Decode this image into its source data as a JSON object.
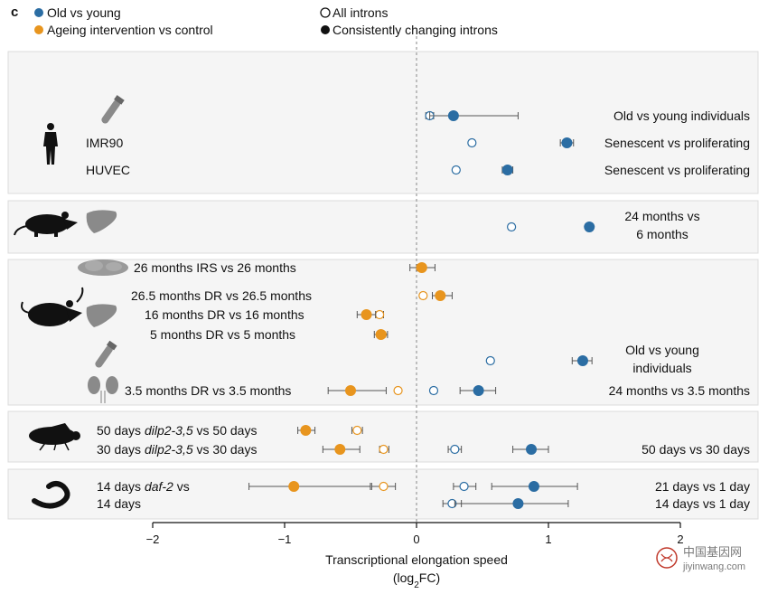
{
  "panel_letter": "c",
  "legend": {
    "old_vs_young": "Old vs young",
    "ageing_intervention": "Ageing intervention vs control",
    "all_introns": "All introns",
    "consistently_changing": "Consistently changing introns"
  },
  "colors": {
    "old_vs_young": "#2b6da3",
    "ageing_intervention": "#e8951e",
    "panel_bg": "#f5f5f5",
    "errorbar": "#555555"
  },
  "icons": [
    "human-silhouette-icon",
    "blood-tube-icon",
    "rat-silhouette-icon",
    "liver-icon",
    "brain-icon",
    "mouse-silhouette-icon",
    "kidney-icon",
    "fly-silhouette-icon",
    "worm-silhouette-icon"
  ],
  "groups": [
    {
      "organism": "human",
      "rows": [
        {
          "left_label": "",
          "right_label": "Old vs young individuals",
          "type": "old_vs_young",
          "all": {
            "value": 0.1,
            "lo": 0.07,
            "hi": 0.13
          },
          "consistent": {
            "value": 0.28,
            "lo": 0.1,
            "hi": 0.77
          }
        },
        {
          "left_label": "IMR90",
          "right_label": "Senescent vs proliferating",
          "type": "old_vs_young",
          "all": {
            "value": 0.42,
            "lo": 0.4,
            "hi": 0.44
          },
          "consistent": {
            "value": 1.14,
            "lo": 1.09,
            "hi": 1.19
          }
        },
        {
          "left_label": "HUVEC",
          "right_label": "Senescent vs proliferating",
          "type": "old_vs_young",
          "all": {
            "value": 0.3,
            "lo": 0.28,
            "hi": 0.32
          },
          "consistent": {
            "value": 0.69,
            "lo": 0.65,
            "hi": 0.73
          }
        }
      ]
    },
    {
      "organism": "rat",
      "rows": [
        {
          "left_label": "",
          "right_label": "24 months vs\n6 months",
          "type": "old_vs_young",
          "all": {
            "value": 0.72,
            "lo": 0.7,
            "hi": 0.74
          },
          "consistent": {
            "value": 1.31,
            "lo": 1.29,
            "hi": 1.33
          }
        }
      ]
    },
    {
      "organism": "mouse",
      "rows": [
        {
          "left_label": "26 months IRS vs 26 months",
          "right_label": "",
          "type": "ageing_intervention",
          "all": {
            "value": 0.03,
            "lo": 0.0,
            "hi": 0.06
          },
          "consistent": {
            "value": 0.04,
            "lo": -0.05,
            "hi": 0.14
          }
        },
        {
          "left_label": "26.5 months DR vs 26.5 months",
          "right_label": "",
          "type": "ageing_intervention",
          "all": {
            "value": 0.05,
            "lo": 0.03,
            "hi": 0.07
          },
          "consistent": {
            "value": 0.18,
            "lo": 0.12,
            "hi": 0.27
          }
        },
        {
          "left_label": "16 months DR vs 16 months",
          "right_label": "",
          "type": "ageing_intervention",
          "all": {
            "value": -0.28,
            "lo": -0.31,
            "hi": -0.25
          },
          "consistent": {
            "value": -0.38,
            "lo": -0.45,
            "hi": -0.31
          }
        },
        {
          "left_label": "5 months DR vs 5 months",
          "right_label": "",
          "type": "ageing_intervention",
          "all": {
            "value": -0.26,
            "lo": -0.28,
            "hi": -0.24
          },
          "consistent": {
            "value": -0.27,
            "lo": -0.32,
            "hi": -0.22
          }
        },
        {
          "left_label": "",
          "right_label": "Old vs young\nindividuals",
          "type": "old_vs_young",
          "all": {
            "value": 0.56,
            "lo": 0.54,
            "hi": 0.58
          },
          "consistent": {
            "value": 1.26,
            "lo": 1.18,
            "hi": 1.33
          }
        },
        {
          "left_label": "3.5 months DR vs 3.5 months",
          "right_label": "24 months vs 3.5 months",
          "type": "mixed",
          "intervention_all": {
            "value": -0.14,
            "lo": -0.16,
            "hi": -0.12
          },
          "intervention_consistent": {
            "value": -0.5,
            "lo": -0.67,
            "hi": -0.23
          },
          "old_all": {
            "value": 0.13,
            "lo": 0.11,
            "hi": 0.15
          },
          "old_consistent": {
            "value": 0.47,
            "lo": 0.33,
            "hi": 0.6
          }
        }
      ]
    },
    {
      "organism": "fly",
      "rows": [
        {
          "left_label": "50 days |dilp2-3,5| vs 50 days",
          "right_label": "",
          "type": "ageing_intervention",
          "all": {
            "value": -0.45,
            "lo": -0.49,
            "hi": -0.41
          },
          "consistent": {
            "value": -0.84,
            "lo": -0.9,
            "hi": -0.77
          }
        },
        {
          "left_label": "30 days |dilp2-3,5| vs 30 days",
          "right_label": "50 days vs 30 days",
          "type": "mixed",
          "intervention_all": {
            "value": -0.25,
            "lo": -0.28,
            "hi": -0.21
          },
          "intervention_consistent": {
            "value": -0.58,
            "lo": -0.71,
            "hi": -0.43
          },
          "old_all": {
            "value": 0.29,
            "lo": 0.24,
            "hi": 0.34
          },
          "old_consistent": {
            "value": 0.87,
            "lo": 0.73,
            "hi": 1.0
          }
        }
      ]
    },
    {
      "organism": "worm",
      "rows": [
        {
          "left_label": "14 days |daf-2| vs\n14 days",
          "right_label": "21 days vs 1 day",
          "type": "mixed",
          "intervention_all": {
            "value": -0.25,
            "lo": -0.34,
            "hi": -0.16
          },
          "intervention_consistent": {
            "value": -0.93,
            "lo": -1.27,
            "hi": -0.35
          },
          "old_all": {
            "value": 0.36,
            "lo": 0.28,
            "hi": 0.45
          },
          "old_consistent": {
            "value": 0.89,
            "lo": 0.57,
            "hi": 1.22
          }
        },
        {
          "left_label": "",
          "right_label": "14 days vs 1 day",
          "type": "old_vs_young",
          "all": {
            "value": 0.27,
            "lo": 0.2,
            "hi": 0.34
          },
          "consistent": {
            "value": 0.77,
            "lo": 0.29,
            "hi": 1.15
          }
        }
      ]
    }
  ],
  "chart_data": {
    "type": "scatter",
    "title": "",
    "xlabel": "Transcriptional elongation speed",
    "xlabel_sub": "(log|2|FC)",
    "ylabel": "",
    "xlim": [
      -2,
      2
    ],
    "x_ticks": [
      -2,
      -1,
      0,
      1,
      2
    ],
    "x_tick_labels": [
      "−2",
      "−1",
      "0",
      "1",
      "2"
    ],
    "reference_line": 0,
    "series": [
      {
        "name": "Old vs young",
        "marker": "filled-circle"
      },
      {
        "name": "Ageing intervention vs control",
        "marker": "filled-circle"
      },
      {
        "name": "All introns",
        "marker": "open-circle"
      },
      {
        "name": "Consistently changing introns",
        "marker": "filled-circle"
      }
    ]
  },
  "watermark": {
    "text": "中国基因网",
    "subtext": "jiyinwang.com"
  }
}
